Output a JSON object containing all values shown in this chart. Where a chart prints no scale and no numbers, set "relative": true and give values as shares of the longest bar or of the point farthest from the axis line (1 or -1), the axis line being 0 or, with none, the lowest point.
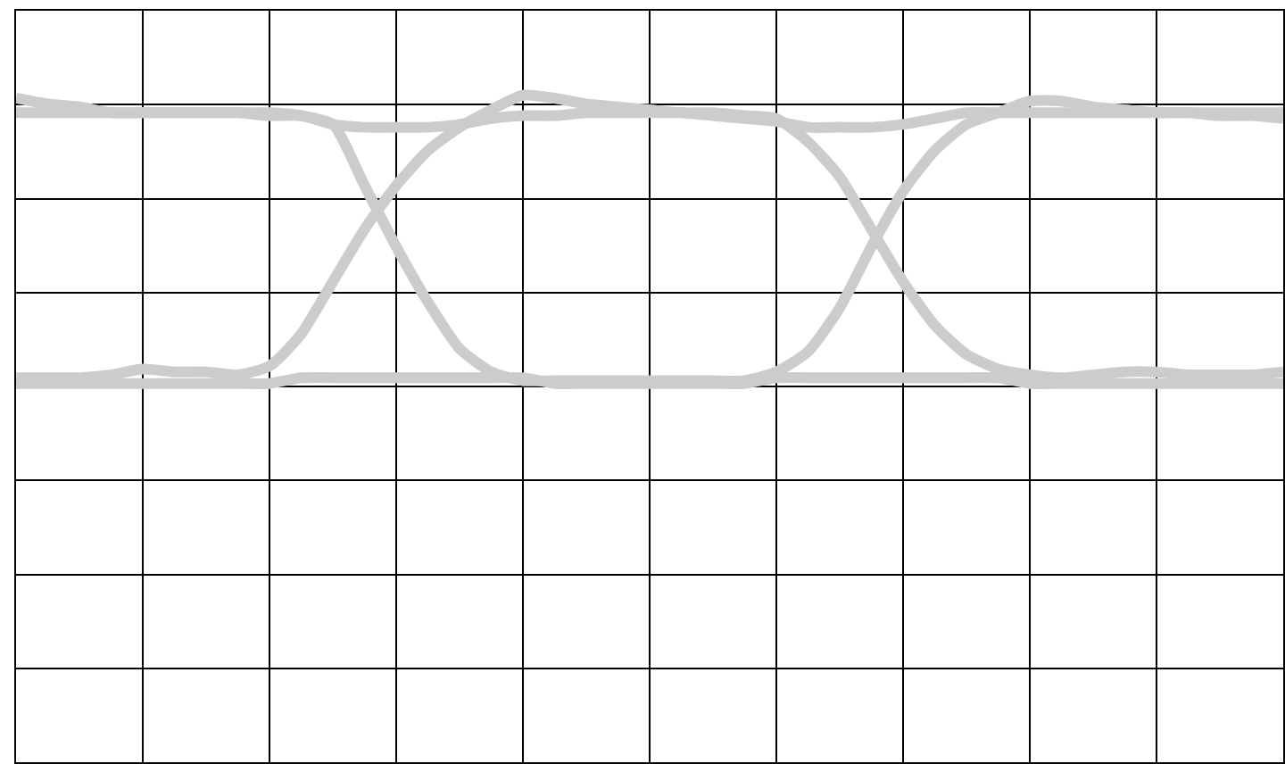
{
  "chart_data": {
    "type": "line",
    "relative": true,
    "grid": true,
    "categories": [
      null,
      null,
      null,
      null,
      null,
      null,
      null,
      null,
      null,
      null,
      null,
      null,
      null,
      null,
      null,
      null,
      null,
      null,
      null,
      null,
      null,
      null,
      null,
      null,
      null,
      null,
      null,
      null,
      null,
      null,
      null,
      null,
      null,
      null,
      null,
      null,
      null,
      null,
      null,
      null,
      null
    ],
    "series": [
      {
        "color": "#cccccc",
        "values": [
          0.99,
          0.97,
          0.96,
          0.94,
          0.94,
          0.94,
          0.94,
          0.94,
          0.94,
          0.93,
          0.9,
          0.69,
          0.48,
          0.29,
          0.13,
          0.05,
          0.02,
          0.02,
          0.02,
          0.02,
          0.02,
          0.02,
          0.02,
          0.02,
          0.05,
          0.12,
          0.27,
          0.48,
          0.67,
          0.81,
          0.9,
          0.94,
          0.98,
          0.98,
          0.96,
          0.95,
          0.94,
          0.94,
          0.93,
          0.93,
          0.92
        ]
      },
      {
        "color": "#cccccc",
        "values": [
          0.03,
          0.03,
          0.03,
          0.04,
          0.06,
          0.05,
          0.05,
          0.04,
          0.07,
          0.18,
          0.36,
          0.54,
          0.69,
          0.81,
          0.89,
          0.95,
          1.0,
          0.99,
          0.97,
          0.96,
          0.95,
          0.94,
          0.94,
          0.93,
          0.92,
          0.84,
          0.72,
          0.54,
          0.36,
          0.21,
          0.11,
          0.06,
          0.04,
          0.03,
          0.04,
          0.05,
          0.05,
          0.04,
          0.04,
          0.04,
          0.05
        ]
      },
      {
        "color": "#cccccc",
        "values": [
          0.94,
          0.94,
          0.94,
          0.94,
          0.94,
          0.94,
          0.94,
          0.94,
          0.93,
          0.93,
          0.9,
          0.89,
          0.89,
          0.89,
          0.9,
          0.92,
          0.93,
          0.93,
          0.94,
          0.94,
          0.94,
          0.94,
          0.93,
          0.92,
          0.91,
          0.89,
          0.89,
          0.89,
          0.9,
          0.92,
          0.94,
          0.94,
          0.94,
          0.94,
          0.94,
          0.94,
          0.94,
          0.94,
          0.94,
          0.94,
          0.94
        ]
      },
      {
        "color": "#cccccc",
        "values": [
          0.01,
          0.01,
          0.01,
          0.01,
          0.01,
          0.01,
          0.01,
          0.01,
          0.01,
          0.03,
          0.03,
          0.03,
          0.03,
          0.03,
          0.03,
          0.03,
          0.03,
          0.01,
          0.01,
          0.01,
          0.01,
          0.01,
          0.01,
          0.01,
          0.03,
          0.03,
          0.03,
          0.03,
          0.03,
          0.03,
          0.03,
          0.03,
          0.01,
          0.01,
          0.01,
          0.01,
          0.01,
          0.01,
          0.01,
          0.01,
          0.01
        ]
      }
    ]
  }
}
